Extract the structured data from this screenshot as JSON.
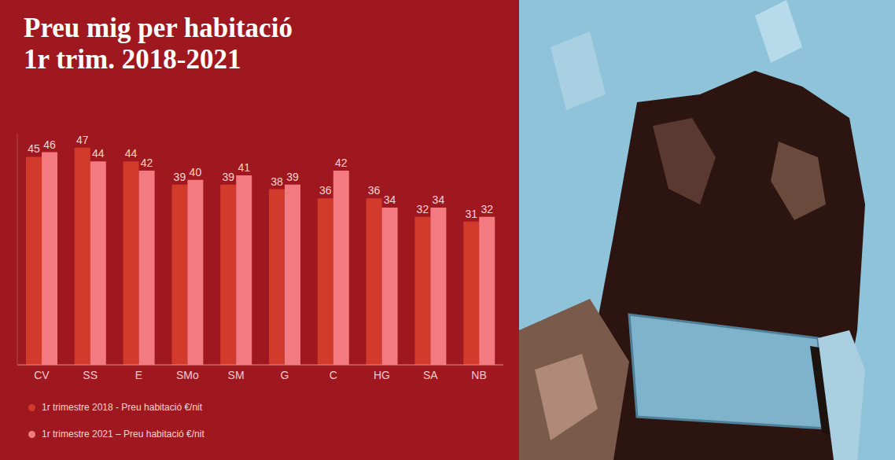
{
  "chart_data": {
    "type": "bar",
    "title": "Preu mig per habitació\n1r trim. 2018-2021",
    "categories": [
      "CV",
      "SS",
      "E",
      "SMo",
      "SM",
      "G",
      "C",
      "HG",
      "SA",
      "NB"
    ],
    "series": [
      {
        "name": "1r trimestre 2018 - Preu habitació €/nit",
        "color": "#d23a2b",
        "values": [
          45,
          47,
          44,
          39,
          39,
          38,
          36,
          36,
          32,
          31
        ]
      },
      {
        "name": "1r trimestre 2021 – Preu habitació €/nit",
        "color": "#f27a80",
        "values": [
          46,
          44,
          42,
          40,
          41,
          39,
          42,
          34,
          34,
          32
        ]
      }
    ],
    "ylim": [
      0,
      50
    ],
    "yticks": [
      0,
      50
    ],
    "tick_labels": "x",
    "data_labels": true,
    "grid": false,
    "legend": "bottom-left"
  }
}
